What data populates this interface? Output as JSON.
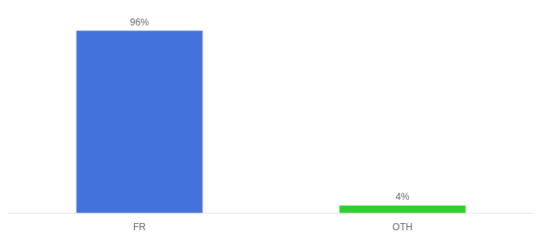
{
  "chart_data": {
    "type": "bar",
    "categories": [
      "FR",
      "OTH"
    ],
    "values": [
      96,
      4
    ],
    "value_labels": [
      "96%",
      "4%"
    ],
    "colors": [
      "#4472db",
      "#33cc33"
    ],
    "ylim": [
      0,
      108
    ],
    "grid": false,
    "data_labels": true,
    "tick_labels": "x"
  }
}
